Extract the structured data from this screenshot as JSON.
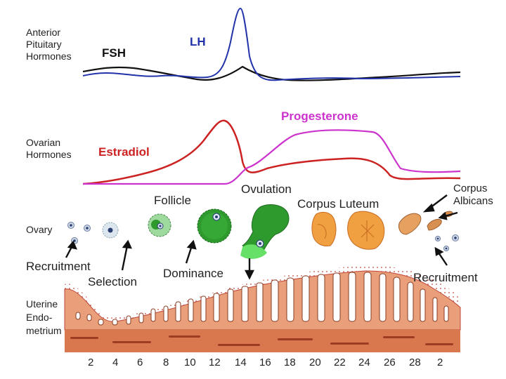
{
  "section_labels": {
    "pituitary": [
      "Anterior",
      "Pituitary",
      "Hormones"
    ],
    "ovarian": [
      "Ovarian",
      "Hormones"
    ],
    "ovary": "Ovary",
    "uterine": [
      "Uterine",
      "Endo-",
      "metrium"
    ]
  },
  "hormones": {
    "fsh": "FSH",
    "lh": "LH",
    "progesterone": "Progesterone",
    "estradiol": "Estradiol"
  },
  "stages": {
    "follicle": "Follicle",
    "ovulation": "Ovulation",
    "corpus_luteum": "Corpus Luteum",
    "corpus_albicans": [
      "Corpus",
      "Albicans"
    ],
    "recruitment_left": "Recruitment",
    "selection": "Selection",
    "dominance": "Dominance",
    "recruitment_right": "Recruitment"
  },
  "day_ticks": [
    "2",
    "4",
    "6",
    "8",
    "10",
    "12",
    "14",
    "16",
    "18",
    "20",
    "22",
    "24",
    "26",
    "28",
    "2"
  ],
  "colors": {
    "fsh": "#111111",
    "lh": "#2233aa",
    "estradiol": "#cc2222",
    "progesterone": "#cc33cc",
    "endometrium": "#e9a07a",
    "endometrium_dark": "#b8583a",
    "follicle_green": "#2e9a2e",
    "luteum_orange": "#f0a040"
  }
}
